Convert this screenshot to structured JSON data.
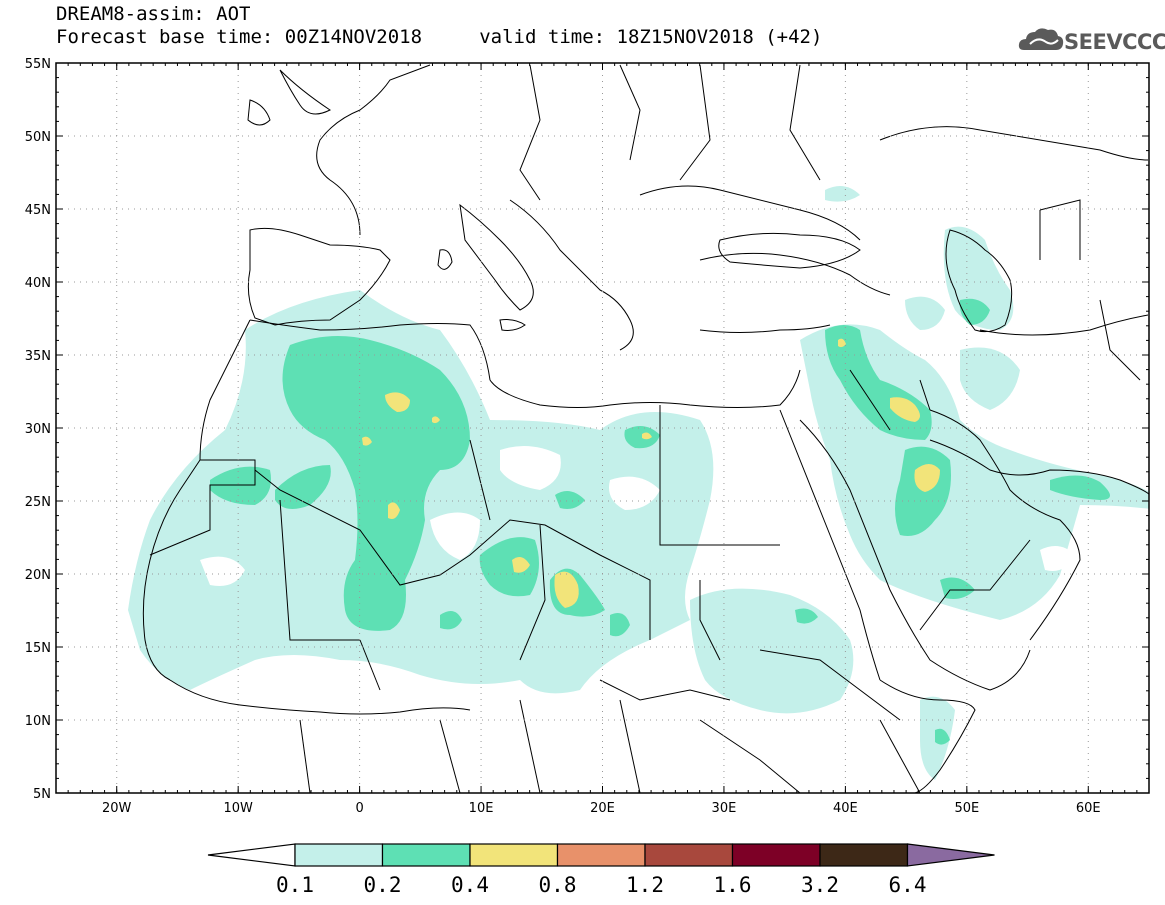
{
  "header": {
    "title_line1": "DREAM8-assim: AOT",
    "title_line2": "Forecast base time: 00Z14NOV2018     valid time: 18Z15NOV2018 (+42)"
  },
  "logo": {
    "text": "SEEVCCC",
    "icon": "cloud-icon",
    "color": "#5a5a5a"
  },
  "map": {
    "lat_ticks": [
      "55N",
      "50N",
      "45N",
      "40N",
      "35N",
      "30N",
      "25N",
      "20N",
      "15N",
      "10N",
      "5N"
    ],
    "lon_ticks": [
      "20W",
      "10W",
      "0",
      "10E",
      "20E",
      "30E",
      "40E",
      "50E",
      "60E"
    ],
    "lat_range": [
      5,
      55
    ],
    "lon_range": [
      -25,
      65
    ],
    "gridlines": "dotted"
  },
  "colorbar": {
    "labels": [
      "0.1",
      "0.2",
      "0.4",
      "0.8",
      "1.2",
      "1.6",
      "3.2",
      "6.4"
    ],
    "colors": [
      "#ffffff",
      "#c4f0ea",
      "#5ee0b4",
      "#f2e47a",
      "#e8916a",
      "#a8483d",
      "#7d0026",
      "#3d2817",
      "#8a6aa0"
    ]
  }
}
